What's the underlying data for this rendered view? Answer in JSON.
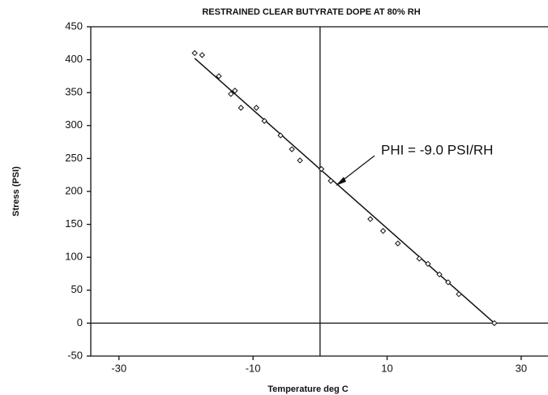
{
  "chart_data": {
    "type": "scatter",
    "title": "RESTRAINED CLEAR BUTYRATE DOPE AT 80% RH",
    "xlabel": "Temperature deg C",
    "ylabel": "Stress (PSI)",
    "annotation": "PHI = -9.0 PSI/RH",
    "color": "#111111",
    "x": [
      -18.7,
      -17.6,
      -15.1,
      -13.3,
      -12.7,
      -11.8,
      -9.5,
      -8.3,
      -5.9,
      -4.2,
      -3.0,
      0.2,
      1.6,
      7.5,
      9.4,
      11.6,
      14.8,
      16.1,
      17.8,
      19.1,
      20.7,
      26.0
    ],
    "y": [
      410,
      407,
      375,
      348,
      353,
      327,
      327,
      307,
      285,
      264,
      247,
      234,
      216,
      158,
      140,
      121,
      98,
      90,
      74,
      62,
      44,
      0
    ],
    "fit": {
      "x": [
        -18.7,
        26.0
      ],
      "y": [
        402,
        0
      ]
    },
    "vlines": [
      0
    ],
    "hlines": [
      0
    ],
    "xlim": [
      -34.2,
      34
    ],
    "xticks": [
      -30,
      -10,
      10,
      30
    ],
    "ylim": [
      -50,
      450
    ],
    "yticks": [
      -50,
      0,
      50,
      100,
      150,
      200,
      250,
      300,
      350,
      400,
      450
    ]
  }
}
